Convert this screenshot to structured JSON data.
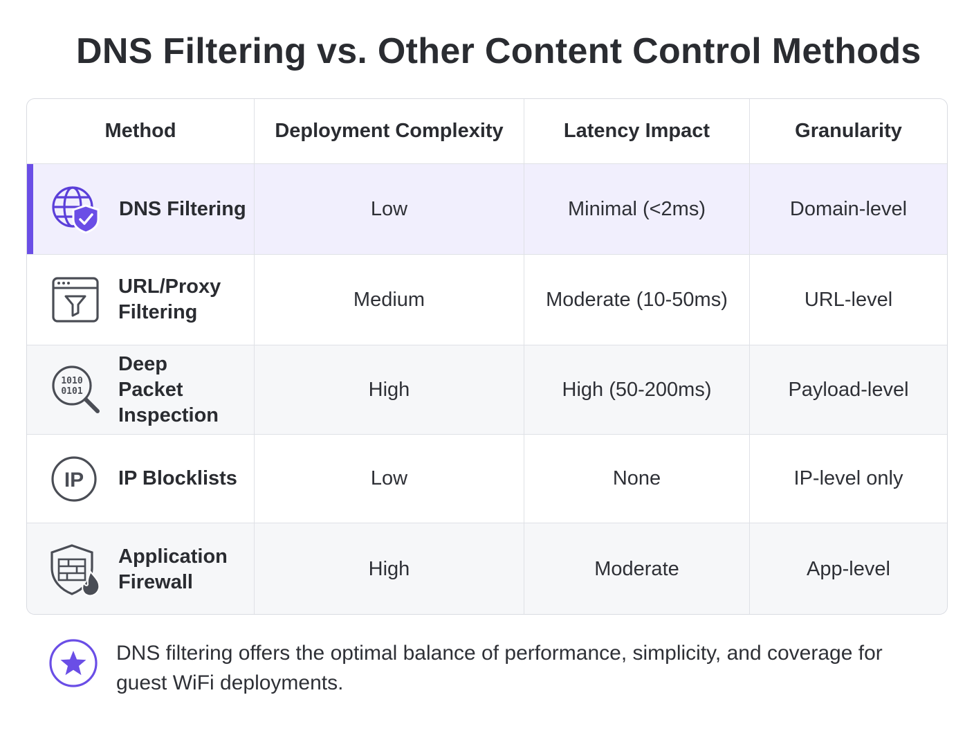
{
  "title": "DNS Filtering vs. Other Content Control Methods",
  "table": {
    "headers": [
      "Method",
      "Deployment Complexity",
      "Latency Impact",
      "Granularity"
    ],
    "rows": [
      {
        "method": "DNS Filtering",
        "icon": "globe-shield-icon",
        "complexity": "Low",
        "latency": "Minimal (<2ms)",
        "granularity": "Domain-level",
        "highlighted": true
      },
      {
        "method": "URL/Proxy Filtering",
        "icon": "browser-filter-icon",
        "complexity": "Medium",
        "latency": "Moderate (10-50ms)",
        "granularity": "URL-level"
      },
      {
        "method": "Deep Packet Inspection",
        "icon": "binary-magnifier-icon",
        "icon_text": [
          "1010",
          "0101"
        ],
        "complexity": "High",
        "latency": "High (50-200ms)",
        "granularity": "Payload-level"
      },
      {
        "method": "IP Blocklists",
        "icon": "ip-circle-icon",
        "icon_text": "IP",
        "complexity": "Low",
        "latency": "None",
        "granularity": "IP-level only"
      },
      {
        "method": "Application Firewall",
        "icon": "firewall-shield-icon",
        "complexity": "High",
        "latency": "Moderate",
        "granularity": "App-level"
      }
    ]
  },
  "footer": {
    "icon": "star-icon",
    "note": "DNS filtering offers the optimal balance of performance, simplicity, and coverage for guest WiFi deployments."
  },
  "colors": {
    "accent": "#6a4ee6",
    "highlight_row": "#f1effd",
    "border": "#dfe1e6",
    "icon_stroke": "#4a4d55"
  }
}
